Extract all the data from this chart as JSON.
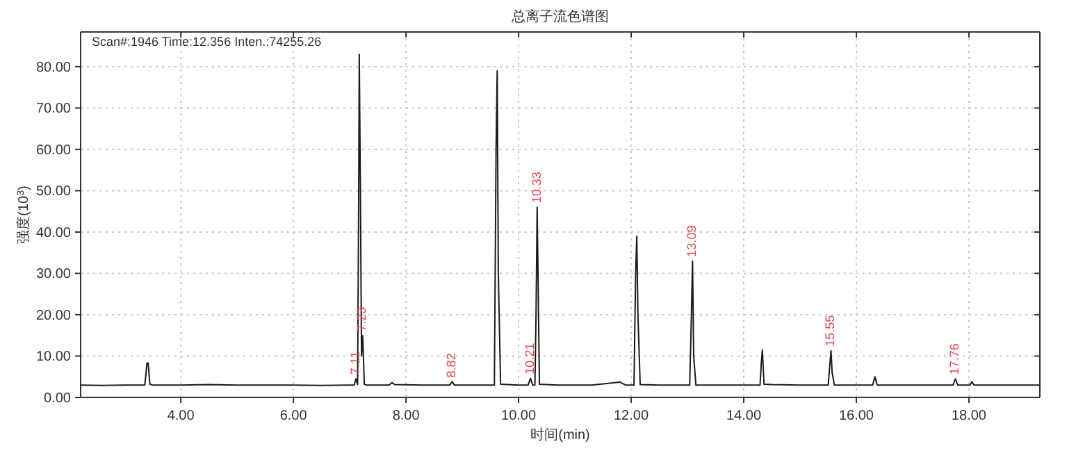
{
  "chart_data": {
    "type": "line",
    "title": "总离子流色谱图",
    "xlabel": "时间(min)",
    "ylabel": "强度(10$^{3}$)",
    "annotations": [
      "Scan#:1946  Time:12.356  Inten.:74255.26",
      {
        "text": "7.11",
        "x": 7.11,
        "y": 4.5
      },
      {
        "text": "7.23",
        "x": 7.23,
        "y": 15
      },
      {
        "text": "8.82",
        "x": 8.82,
        "y": 3.8
      },
      {
        "text": "10.21",
        "x": 10.21,
        "y": 4.6
      },
      {
        "text": "10.33",
        "x": 10.33,
        "y": 46
      },
      {
        "text": "13.09",
        "x": 13.09,
        "y": 33
      },
      {
        "text": "15.55",
        "x": 15.55,
        "y": 11.3
      },
      {
        "text": "17.76",
        "x": 17.76,
        "y": 4.5
      }
    ],
    "series": [
      {
        "color": "#1a1a1a",
        "x": [
          2.22,
          2.6,
          3.0,
          3.36,
          3.4,
          3.42,
          3.45,
          3.5,
          4.0,
          4.5,
          5.0,
          5.5,
          6.0,
          6.5,
          7.0,
          7.08,
          7.11,
          7.14,
          7.16,
          7.17,
          7.19,
          7.21,
          7.23,
          7.26,
          7.3,
          7.7,
          7.75,
          7.8,
          8.3,
          8.78,
          8.82,
          8.86,
          9.2,
          9.57,
          9.6,
          9.62,
          9.64,
          9.68,
          10.0,
          10.17,
          10.21,
          10.25,
          10.29,
          10.31,
          10.33,
          10.37,
          10.7,
          11.3,
          11.8,
          11.9,
          12.05,
          12.08,
          12.1,
          12.12,
          12.16,
          12.5,
          13.04,
          13.07,
          13.09,
          13.11,
          13.15,
          13.6,
          14.29,
          14.31,
          14.33,
          14.36,
          14.5,
          15.0,
          15.5,
          15.53,
          15.55,
          15.57,
          15.61,
          16.0,
          16.29,
          16.33,
          16.37,
          16.8,
          17.3,
          17.72,
          17.76,
          17.8,
          18.02,
          18.05,
          18.09,
          18.5,
          19.0,
          19.26
        ],
        "values": [
          3.0,
          2.9,
          3.0,
          3.0,
          8.3,
          8.3,
          3.2,
          3.0,
          3.0,
          3.1,
          3.0,
          3.0,
          3.0,
          2.9,
          3.0,
          3.0,
          4.5,
          3.1,
          50,
          83,
          50,
          10,
          15,
          3.2,
          3.0,
          3.0,
          3.6,
          3.1,
          3.0,
          3.0,
          3.8,
          3.0,
          3.0,
          3.0,
          60,
          79,
          30,
          3.2,
          3.0,
          3.0,
          4.6,
          3.0,
          3.0,
          20,
          46,
          3.2,
          3.0,
          3.0,
          3.7,
          3.0,
          3.0,
          30,
          39,
          20,
          3.1,
          3.0,
          3.0,
          20,
          33,
          10,
          3.0,
          3.0,
          3.0,
          8,
          11.5,
          3.2,
          3.1,
          3.0,
          3.0,
          8,
          11.3,
          6,
          3.0,
          3.0,
          3.0,
          5.0,
          3.0,
          3.0,
          3.0,
          3.0,
          4.5,
          3.0,
          3.0,
          3.8,
          3.0,
          3.0,
          3.0,
          3.0
        ]
      }
    ],
    "xlim": [
      2.22,
      19.26
    ],
    "ylim": [
      0,
      88.4
    ],
    "xticks": [
      {
        "value": 4,
        "label": "4.00"
      },
      {
        "value": 6,
        "label": "6.00"
      },
      {
        "value": 8,
        "label": "8.00"
      },
      {
        "value": 10,
        "label": "10.00"
      },
      {
        "value": 12,
        "label": "12.00"
      },
      {
        "value": 14,
        "label": "14.00"
      },
      {
        "value": 16,
        "label": "16.00"
      },
      {
        "value": 18,
        "label": "18.00"
      }
    ],
    "yticks": [
      {
        "value": 0,
        "label": "0.00"
      },
      {
        "value": 10,
        "label": "10.00"
      },
      {
        "value": 20,
        "label": "20.00"
      },
      {
        "value": 30,
        "label": "30.00"
      },
      {
        "value": 40,
        "label": "40.00"
      },
      {
        "value": 50,
        "label": "50.00"
      },
      {
        "value": 60,
        "label": "60.00"
      },
      {
        "value": 70,
        "label": "70.00"
      },
      {
        "value": 80,
        "label": "80.00"
      }
    ],
    "grid": true,
    "marker": "none",
    "line_style": "solid"
  }
}
